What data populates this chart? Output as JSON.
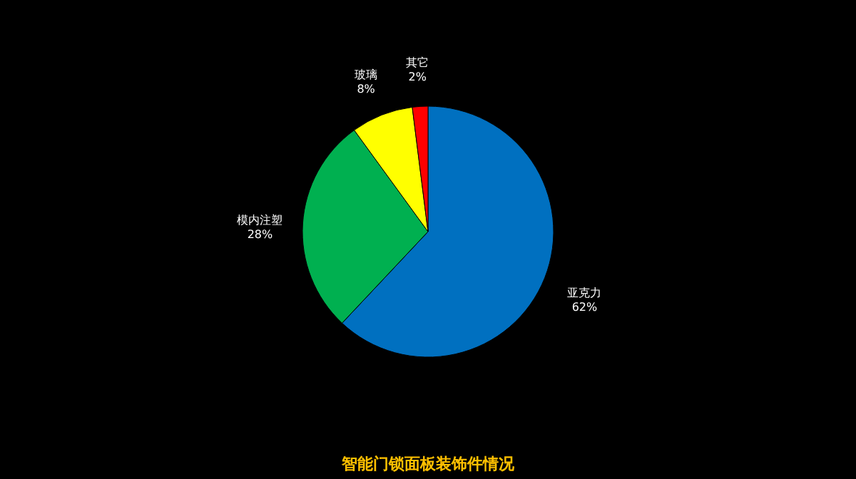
{
  "chart_data": {
    "type": "pie",
    "title": "智能门锁面板装饰件情况",
    "categories": [
      "亚克力",
      "模内注塑",
      "玻璃",
      "其它"
    ],
    "values": [
      62,
      28,
      8,
      2
    ],
    "colors": [
      "#0070c0",
      "#00b050",
      "#ffff00",
      "#ff0000"
    ],
    "value_labels": [
      "62%",
      "28%",
      "8%",
      "2%"
    ],
    "legend": false
  }
}
